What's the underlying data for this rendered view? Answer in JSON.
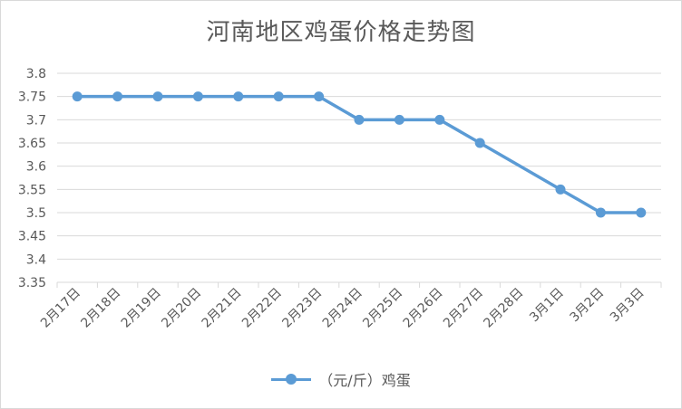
{
  "chart_data": {
    "type": "line",
    "title": "河南地区鸡蛋价格走势图",
    "categories": [
      "2月17日",
      "2月18日",
      "2月19日",
      "2月20日",
      "2月21日",
      "2月22日",
      "2月23日",
      "2月24日",
      "2月25日",
      "2月26日",
      "2月27日",
      "2月28日",
      "3月1日",
      "3月2日",
      "3月3日"
    ],
    "series": [
      {
        "name": "（元/斤）鸡蛋",
        "values": [
          3.75,
          3.75,
          3.75,
          3.75,
          3.75,
          3.75,
          3.75,
          3.7,
          3.7,
          3.7,
          3.65,
          null,
          3.55,
          3.5,
          3.5
        ]
      }
    ],
    "yticks": [
      "3.35",
      "3.4",
      "3.45",
      "3.5",
      "3.55",
      "3.6",
      "3.65",
      "3.7",
      "3.75",
      "3.8"
    ],
    "ylim": [
      3.35,
      3.8
    ],
    "grid": true,
    "legend_position": "bottom",
    "colors": {
      "series": "#5b9bd5",
      "grid": "#d9d9d9",
      "text": "#595959"
    }
  }
}
